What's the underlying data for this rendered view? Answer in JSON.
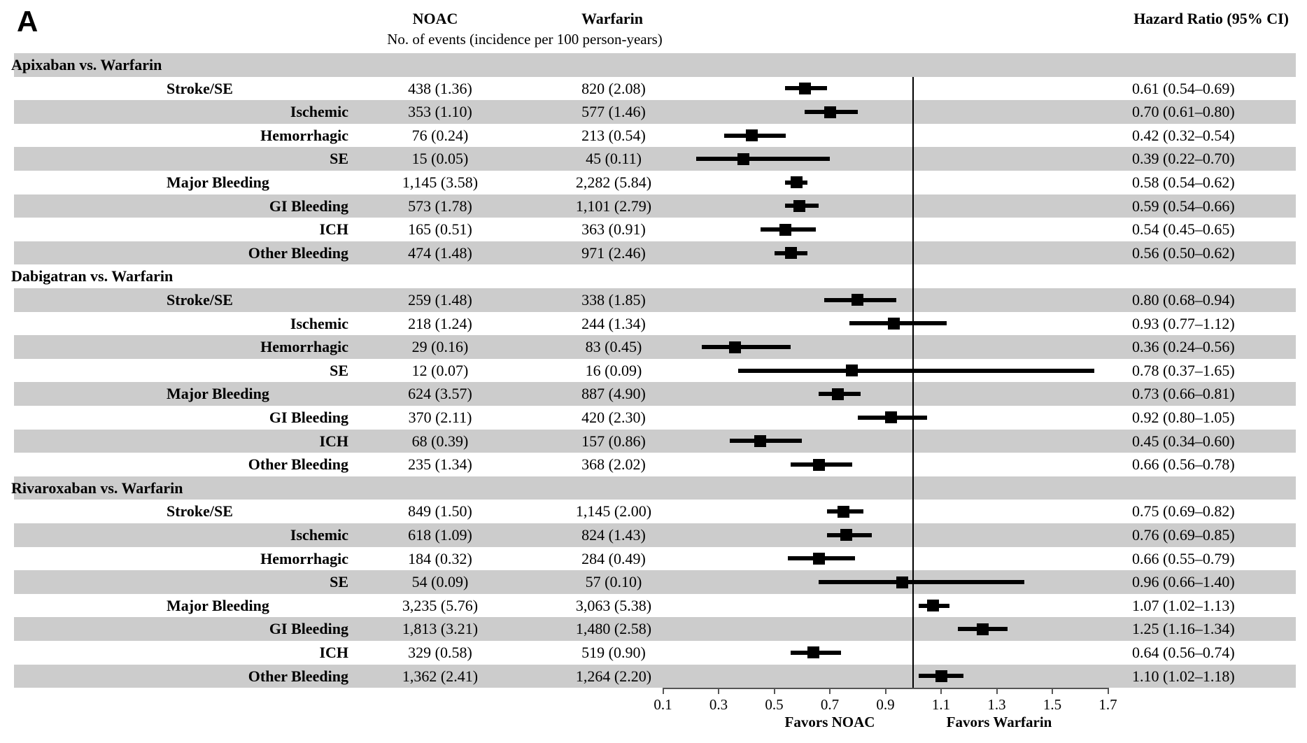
{
  "panel_label": "A",
  "header": {
    "noac": "NOAC",
    "warfarin": "Warfarin",
    "events_subheader": "No. of events (incidence per 100 person-years)",
    "hazard_ratio": "Hazard Ratio (95% CI)"
  },
  "colors": {
    "stripe": "#cccccc",
    "marker": "#000000",
    "text": "#000000",
    "background": "#ffffff"
  },
  "chart_data": {
    "type": "forest",
    "title": "",
    "xlabel": "",
    "x_axis": {
      "scale": "linear",
      "min": 0.1,
      "max": 1.7,
      "ticks": [
        "0.1",
        "0.3",
        "0.5",
        "0.7",
        "0.9",
        "1.1",
        "1.3",
        "1.5",
        "1.7"
      ],
      "reference_line": 1.0,
      "favors_left": "Favors NOAC",
      "favors_right": "Favors Warfarin"
    },
    "groups": [
      {
        "name": "Apixaban vs. Warfarin",
        "rows": [
          {
            "label": "Stroke/SE",
            "indent": 1,
            "noac": "438 (1.36)",
            "warfarin": "820 (2.08)",
            "hr": 0.61,
            "lo": 0.54,
            "hi": 0.69,
            "hr_text": "0.61 (0.54–0.69)"
          },
          {
            "label": "Ischemic",
            "indent": 2,
            "noac": "353 (1.10)",
            "warfarin": "577 (1.46)",
            "hr": 0.7,
            "lo": 0.61,
            "hi": 0.8,
            "hr_text": "0.70 (0.61–0.80)"
          },
          {
            "label": "Hemorrhagic",
            "indent": 2,
            "noac": "76 (0.24)",
            "warfarin": "213 (0.54)",
            "hr": 0.42,
            "lo": 0.32,
            "hi": 0.54,
            "hr_text": "0.42 (0.32–0.54)"
          },
          {
            "label": "SE",
            "indent": 2,
            "noac": "15 (0.05)",
            "warfarin": "45 (0.11)",
            "hr": 0.39,
            "lo": 0.22,
            "hi": 0.7,
            "hr_text": "0.39 (0.22–0.70)"
          },
          {
            "label": "Major Bleeding",
            "indent": 1,
            "noac": "1,145 (3.58)",
            "warfarin": "2,282 (5.84)",
            "hr": 0.58,
            "lo": 0.54,
            "hi": 0.62,
            "hr_text": "0.58 (0.54–0.62)"
          },
          {
            "label": "GI Bleeding",
            "indent": 2,
            "noac": "573 (1.78)",
            "warfarin": "1,101 (2.79)",
            "hr": 0.59,
            "lo": 0.54,
            "hi": 0.66,
            "hr_text": "0.59 (0.54–0.66)"
          },
          {
            "label": "ICH",
            "indent": 2,
            "noac": "165 (0.51)",
            "warfarin": "363 (0.91)",
            "hr": 0.54,
            "lo": 0.45,
            "hi": 0.65,
            "hr_text": "0.54 (0.45–0.65)"
          },
          {
            "label": "Other Bleeding",
            "indent": 2,
            "noac": "474 (1.48)",
            "warfarin": "971 (2.46)",
            "hr": 0.56,
            "lo": 0.5,
            "hi": 0.62,
            "hr_text": "0.56 (0.50–0.62)"
          }
        ]
      },
      {
        "name": "Dabigatran vs. Warfarin",
        "rows": [
          {
            "label": "Stroke/SE",
            "indent": 1,
            "noac": "259 (1.48)",
            "warfarin": "338 (1.85)",
            "hr": 0.8,
            "lo": 0.68,
            "hi": 0.94,
            "hr_text": "0.80 (0.68–0.94)"
          },
          {
            "label": "Ischemic",
            "indent": 2,
            "noac": "218 (1.24)",
            "warfarin": "244 (1.34)",
            "hr": 0.93,
            "lo": 0.77,
            "hi": 1.12,
            "hr_text": "0.93 (0.77–1.12)"
          },
          {
            "label": "Hemorrhagic",
            "indent": 2,
            "noac": "29 (0.16)",
            "warfarin": "83 (0.45)",
            "hr": 0.36,
            "lo": 0.24,
            "hi": 0.56,
            "hr_text": "0.36 (0.24–0.56)"
          },
          {
            "label": "SE",
            "indent": 2,
            "noac": "12 (0.07)",
            "warfarin": "16 (0.09)",
            "hr": 0.78,
            "lo": 0.37,
            "hi": 1.65,
            "hr_text": "0.78 (0.37–1.65)"
          },
          {
            "label": "Major Bleeding",
            "indent": 1,
            "noac": "624 (3.57)",
            "warfarin": "887 (4.90)",
            "hr": 0.73,
            "lo": 0.66,
            "hi": 0.81,
            "hr_text": "0.73 (0.66–0.81)"
          },
          {
            "label": "GI Bleeding",
            "indent": 2,
            "noac": "370 (2.11)",
            "warfarin": "420 (2.30)",
            "hr": 0.92,
            "lo": 0.8,
            "hi": 1.05,
            "hr_text": "0.92 (0.80–1.05)"
          },
          {
            "label": "ICH",
            "indent": 2,
            "noac": "68 (0.39)",
            "warfarin": "157 (0.86)",
            "hr": 0.45,
            "lo": 0.34,
            "hi": 0.6,
            "hr_text": "0.45 (0.34–0.60)"
          },
          {
            "label": "Other Bleeding",
            "indent": 2,
            "noac": "235 (1.34)",
            "warfarin": "368 (2.02)",
            "hr": 0.66,
            "lo": 0.56,
            "hi": 0.78,
            "hr_text": "0.66 (0.56–0.78)"
          }
        ]
      },
      {
        "name": "Rivaroxaban vs. Warfarin",
        "rows": [
          {
            "label": "Stroke/SE",
            "indent": 1,
            "noac": "849 (1.50)",
            "warfarin": "1,145 (2.00)",
            "hr": 0.75,
            "lo": 0.69,
            "hi": 0.82,
            "hr_text": "0.75 (0.69–0.82)"
          },
          {
            "label": "Ischemic",
            "indent": 2,
            "noac": "618 (1.09)",
            "warfarin": "824 (1.43)",
            "hr": 0.76,
            "lo": 0.69,
            "hi": 0.85,
            "hr_text": "0.76 (0.69–0.85)"
          },
          {
            "label": "Hemorrhagic",
            "indent": 2,
            "noac": "184 (0.32)",
            "warfarin": "284 (0.49)",
            "hr": 0.66,
            "lo": 0.55,
            "hi": 0.79,
            "hr_text": "0.66 (0.55–0.79)"
          },
          {
            "label": "SE",
            "indent": 2,
            "noac": "54 (0.09)",
            "warfarin": "57 (0.10)",
            "hr": 0.96,
            "lo": 0.66,
            "hi": 1.4,
            "hr_text": "0.96 (0.66–1.40)"
          },
          {
            "label": "Major Bleeding",
            "indent": 1,
            "noac": "3,235 (5.76)",
            "warfarin": "3,063 (5.38)",
            "hr": 1.07,
            "lo": 1.02,
            "hi": 1.13,
            "hr_text": "1.07 (1.02–1.13)"
          },
          {
            "label": "GI Bleeding",
            "indent": 2,
            "noac": "1,813 (3.21)",
            "warfarin": "1,480 (2.58)",
            "hr": 1.25,
            "lo": 1.16,
            "hi": 1.34,
            "hr_text": "1.25 (1.16–1.34)"
          },
          {
            "label": "ICH",
            "indent": 2,
            "noac": "329 (0.58)",
            "warfarin": "519 (0.90)",
            "hr": 0.64,
            "lo": 0.56,
            "hi": 0.74,
            "hr_text": "0.64 (0.56–0.74)"
          },
          {
            "label": "Other Bleeding",
            "indent": 2,
            "noac": "1,362 (2.41)",
            "warfarin": "1,264 (2.20)",
            "hr": 1.1,
            "lo": 1.02,
            "hi": 1.18,
            "hr_text": "1.10 (1.02–1.18)"
          }
        ]
      }
    ]
  }
}
